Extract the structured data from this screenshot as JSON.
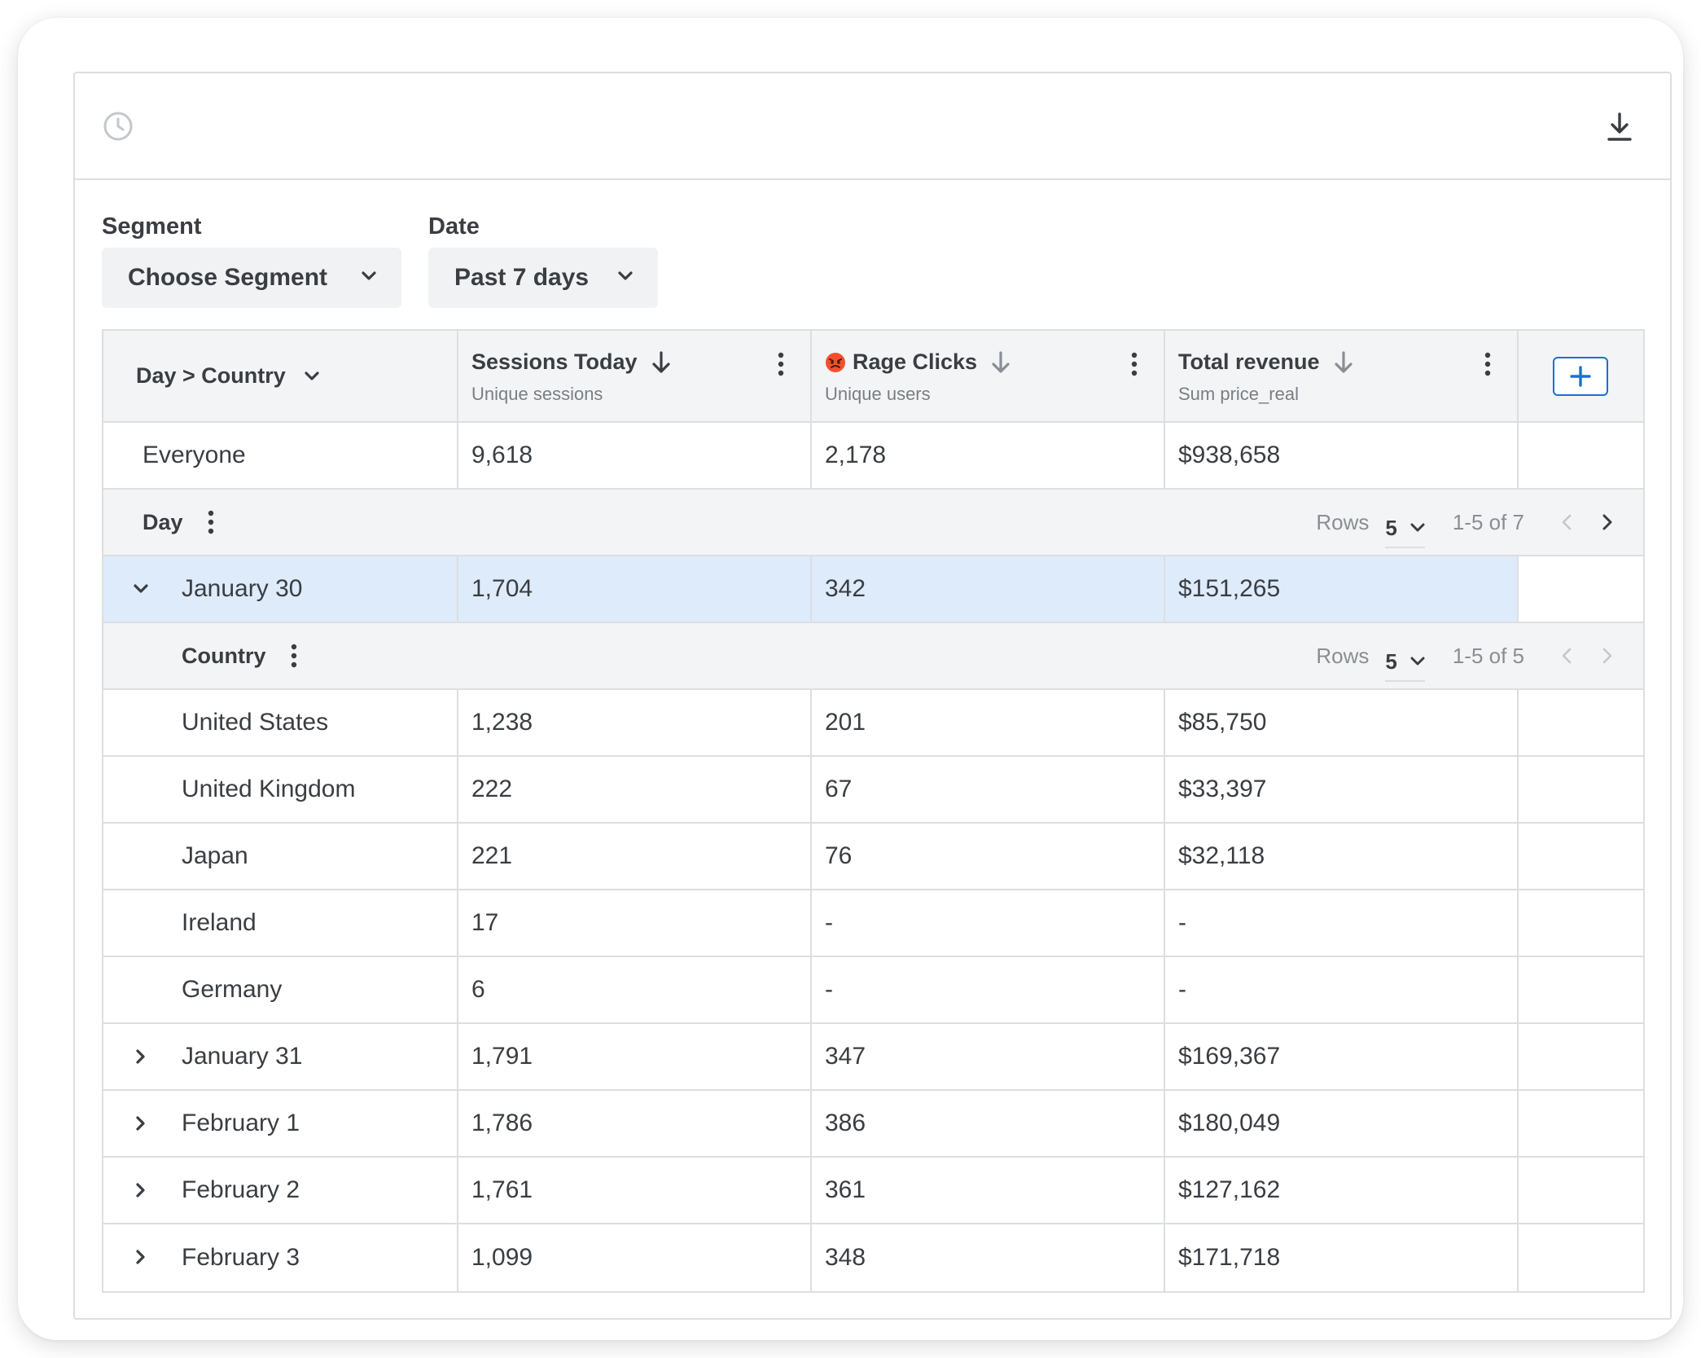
{
  "header": {
    "history_icon": "clock-icon",
    "download_icon": "download-icon"
  },
  "filters": {
    "segment": {
      "label": "Segment",
      "value": "Choose Segment"
    },
    "date": {
      "label": "Date",
      "value": "Past 7 days"
    }
  },
  "table": {
    "group_header": "Day > Country",
    "columns": [
      {
        "title": "Sessions Today",
        "subtitle": "Unique sessions"
      },
      {
        "title": "Rage Clicks",
        "subtitle": "Unique users",
        "emoji": "angry-face"
      },
      {
        "title": "Total revenue",
        "subtitle": "Sum price_real"
      }
    ],
    "add_column_icon": "plus-icon",
    "everyone": {
      "label": "Everyone",
      "values": [
        "9,618",
        "2,178",
        "$938,658"
      ]
    },
    "day_group": {
      "label": "Day",
      "rows_label": "Rows",
      "rows_value": "5",
      "range": "1-5 of 7"
    },
    "selected_day": {
      "label": "January 30",
      "values": [
        "1,704",
        "342",
        "$151,265"
      ]
    },
    "country_group": {
      "label": "Country",
      "rows_label": "Rows",
      "rows_value": "5",
      "range": "1-5 of 5"
    },
    "countries": [
      {
        "label": "United States",
        "values": [
          "1,238",
          "201",
          "$85,750"
        ]
      },
      {
        "label": "United Kingdom",
        "values": [
          "222",
          "67",
          "$33,397"
        ]
      },
      {
        "label": "Japan",
        "values": [
          "221",
          "76",
          "$32,118"
        ]
      },
      {
        "label": "Ireland",
        "values": [
          "17",
          "-",
          "-"
        ]
      },
      {
        "label": "Germany",
        "values": [
          "6",
          "-",
          "-"
        ]
      }
    ],
    "days": [
      {
        "label": "January 31",
        "values": [
          "1,791",
          "347",
          "$169,367"
        ]
      },
      {
        "label": "February 1",
        "values": [
          "1,786",
          "386",
          "$180,049"
        ]
      },
      {
        "label": "February 2",
        "values": [
          "1,761",
          "361",
          "$127,162"
        ]
      },
      {
        "label": "February 3",
        "values": [
          "1,099",
          "348",
          "$171,718"
        ]
      }
    ]
  },
  "colors": {
    "border": "#dcdee1",
    "header_bg": "#f3f4f5",
    "selected_bg": "#deebfb",
    "accent": "#1a6fd8",
    "text": "#3a3d42"
  }
}
